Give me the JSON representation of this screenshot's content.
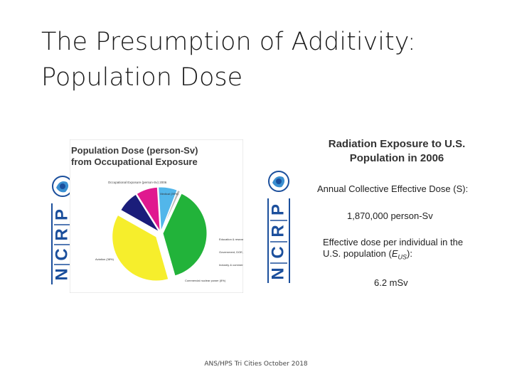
{
  "slide": {
    "title_line1": "The Presumption of Additivity:",
    "title_line2": "Population Dose",
    "footer": "ANS/HPS Tri Cities October 2018"
  },
  "logo": {
    "letters": [
      "N",
      "C",
      "R",
      "P"
    ],
    "color": "#1b4f9c"
  },
  "left_panel": {
    "heading_line1": "Population Dose (person-Sv)",
    "heading_line2": "from Occupational Exposure"
  },
  "right_panel": {
    "heading_line1": "Radiation Exposure to U.S.",
    "heading_line2": "Population in 2006",
    "collective_label": "Annual Collective Effective Dose (S):",
    "collective_value": "1,870,000 person-Sv",
    "individual_label_line1": "Effective dose per individual in the",
    "individual_label_line2_prefix": "U.S. population (",
    "individual_symbol": "E",
    "individual_subscript": "US",
    "individual_label_line2_suffix": "):",
    "individual_value": "6.2 mSv"
  },
  "chart_data": {
    "type": "pie",
    "title": "Occupational Exposure (person-Sv) 2006",
    "legend_position": "none",
    "slices": [
      {
        "label": "Medical (39%)",
        "percent": 39,
        "color": "#22b33a"
      },
      {
        "label": "Aviation (38%)",
        "percent": 38,
        "color": "#f6ee2c"
      },
      {
        "label": "Commercial nuclear power (8%)",
        "percent": 8,
        "color": "#1b1d7a"
      },
      {
        "label": "Industry & commerce (8%)",
        "percent": 8,
        "color": "#e0198f"
      },
      {
        "label": "Government, DOE, military (7%)",
        "percent": 7,
        "color": "#52b6ea"
      },
      {
        "label": "Education & research (1%)",
        "percent": 1,
        "color": "#b8b8b8"
      }
    ]
  }
}
